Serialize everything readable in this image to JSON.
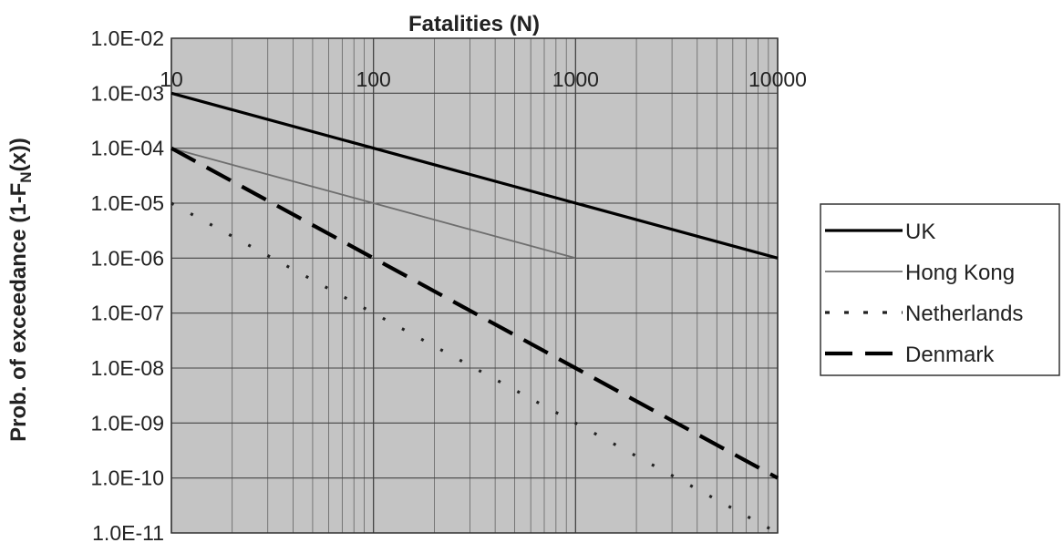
{
  "chart_data": {
    "type": "line",
    "x_scale": "log",
    "y_scale": "log",
    "xlabel": "Fatalities (N)",
    "ylabel_main": "Prob. of exceedance (1-F",
    "ylabel_sub": "N",
    "ylabel_end": "(x))",
    "xlim": [
      10,
      10000
    ],
    "ylim": [
      1e-11,
      0.01
    ],
    "x_tick_labels": [
      "10",
      "100",
      "1000",
      "10000"
    ],
    "y_tick_labels": [
      "1.0E-02",
      "1.0E-03",
      "1.0E-04",
      "1.0E-05",
      "1.0E-06",
      "1.0E-07",
      "1.0E-08",
      "1.0E-09",
      "1.0E-10",
      "1.0E-11"
    ],
    "grid": true,
    "legend_position": "right",
    "series": [
      {
        "name": "UK",
        "x": [
          10,
          10000
        ],
        "y": [
          0.001,
          1e-06
        ],
        "style": "solid-thick",
        "color": "#000000"
      },
      {
        "name": "Hong Kong",
        "x": [
          10,
          1000
        ],
        "y": [
          0.0001,
          1e-06
        ],
        "style": "solid-thin",
        "color": "#6e6e6e"
      },
      {
        "name": "Netherlands",
        "x": [
          10,
          10000
        ],
        "y": [
          1e-05,
          1e-11
        ],
        "style": "dotted",
        "color": "#222222"
      },
      {
        "name": "Denmark",
        "x": [
          10,
          10000
        ],
        "y": [
          0.0001,
          1e-10
        ],
        "style": "dashed",
        "color": "#000000"
      }
    ]
  }
}
